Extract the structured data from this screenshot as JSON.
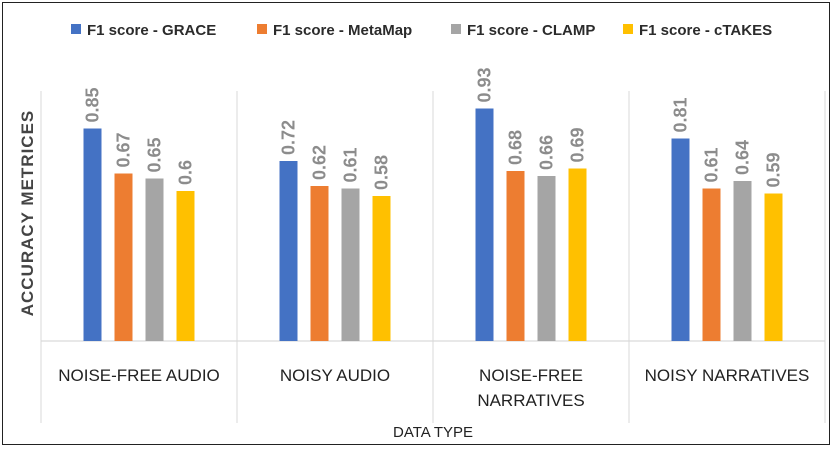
{
  "chart_data": {
    "type": "bar",
    "title": "",
    "xlabel": "DATA TYPE",
    "ylabel": "ACCURACY METRICES",
    "categories": [
      "NOISE-FREE AUDIO",
      "NOISY AUDIO",
      "NOISE-FREE\nNARRATIVES",
      "NOISY NARRATIVES"
    ],
    "series": [
      {
        "name": "F1 score - GRACE",
        "color": "#4472C4",
        "values": [
          0.85,
          0.72,
          0.93,
          0.81
        ],
        "labels": [
          "0.85",
          "0.72",
          "0.93",
          "0.81"
        ]
      },
      {
        "name": "F1 score  - MetaMap",
        "color": "#ED7D31",
        "values": [
          0.67,
          0.62,
          0.68,
          0.61
        ],
        "labels": [
          "0.67",
          "0.62",
          "0.68",
          "0.61"
        ]
      },
      {
        "name": "F1 score - CLAMP",
        "color": "#A5A5A5",
        "values": [
          0.65,
          0.61,
          0.66,
          0.64
        ],
        "labels": [
          "0.65",
          "0.61",
          "0.66",
          "0.64"
        ]
      },
      {
        "name": "F1 score - cTAKES",
        "color": "#FFC000",
        "values": [
          0.6,
          0.58,
          0.69,
          0.59
        ],
        "labels": [
          "0.6",
          "0.58",
          "0.69",
          "0.59"
        ]
      }
    ],
    "ylim": [
      0,
      1
    ],
    "grid": false,
    "legend": "top",
    "value_label_color": "#8C8C8C"
  }
}
